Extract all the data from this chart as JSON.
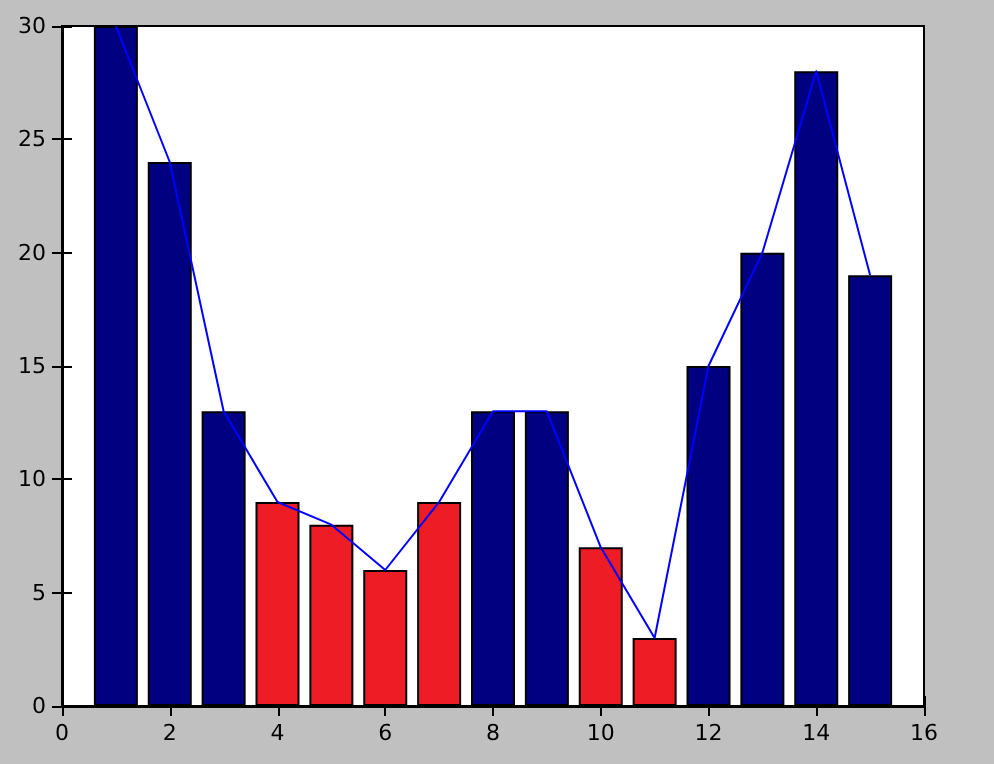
{
  "chart_data": {
    "type": "bar",
    "x": [
      1,
      2,
      3,
      4,
      5,
      6,
      7,
      8,
      9,
      10,
      11,
      12,
      13,
      14,
      15
    ],
    "series": [
      {
        "values": [
          30,
          24,
          13,
          9,
          8,
          6,
          9,
          13,
          13,
          7,
          3,
          15,
          20,
          28,
          19
        ],
        "colors": [
          "#000080",
          "#000080",
          "#000080",
          "#ee1c24",
          "#ee1c24",
          "#ee1c24",
          "#ee1c24",
          "#000080",
          "#000080",
          "#ee1c24",
          "#ee1c24",
          "#000080",
          "#000080",
          "#000080",
          "#000080"
        ]
      },
      {
        "type": "line",
        "color": "#0000ff",
        "marker": "none",
        "line_style": "solid",
        "values": [
          30,
          24,
          13,
          9,
          8,
          6,
          9,
          13,
          13,
          7,
          3,
          15,
          20,
          28,
          19
        ]
      }
    ],
    "xlim": [
      0,
      16
    ],
    "xticks": [
      0,
      2,
      4,
      6,
      8,
      10,
      12,
      14,
      16
    ],
    "ylim": [
      0,
      30
    ],
    "yticks": [
      0,
      5,
      10,
      15,
      20,
      25,
      30
    ],
    "grid": false
  }
}
